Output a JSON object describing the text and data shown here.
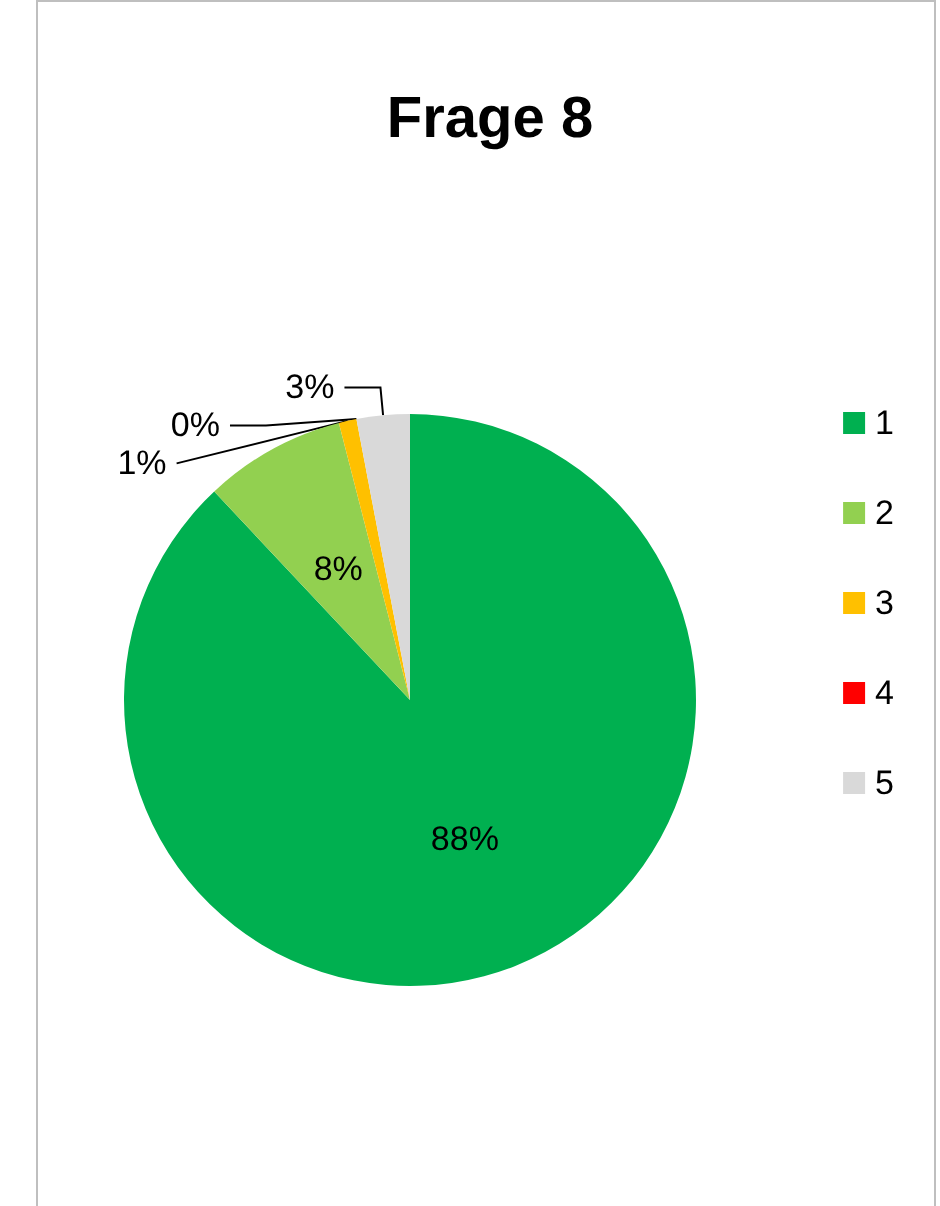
{
  "chart_data": {
    "type": "pie",
    "title": "Frage 8",
    "categories": [
      "1",
      "2",
      "3",
      "4",
      "5"
    ],
    "values": [
      88,
      8,
      1,
      0,
      3
    ],
    "colors": [
      "#00b050",
      "#92d050",
      "#ffc000",
      "#ff0000",
      "#d9d9d9"
    ],
    "value_labels": [
      "88%",
      "8%",
      "1%",
      "0%",
      "3%"
    ],
    "legend": "right"
  }
}
